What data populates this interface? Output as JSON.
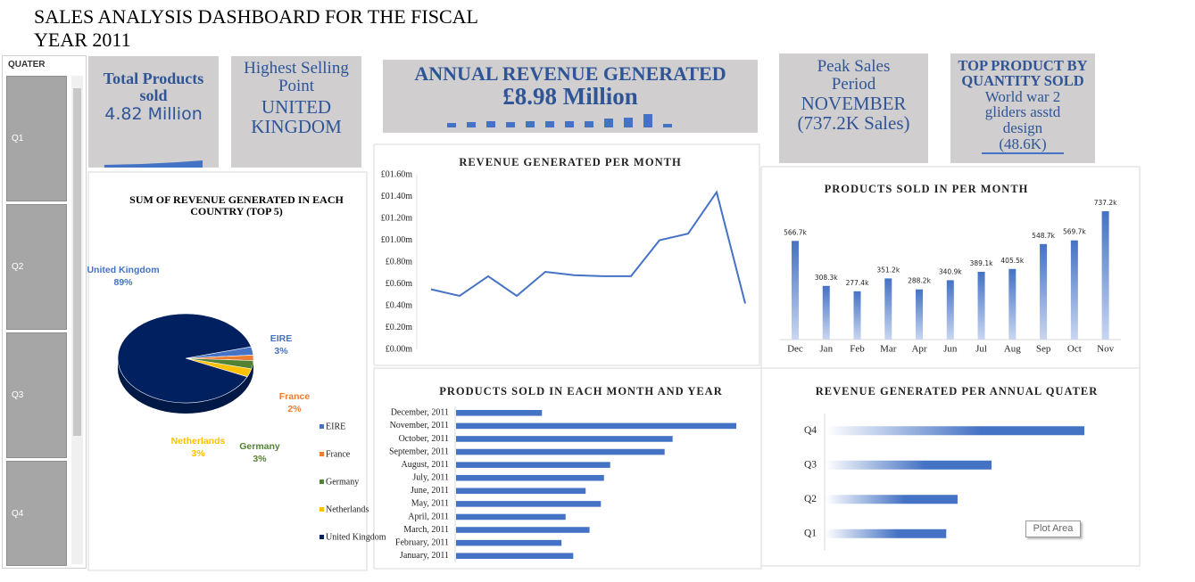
{
  "title": "SALES ANALYSIS DASHBOARD FOR THE FISCAL YEAR 2011",
  "slicer": {
    "title": "QUATER",
    "items": [
      "Q1",
      "Q2",
      "Q3",
      "Q4"
    ]
  },
  "cards": [
    {
      "label": "Total Products sold",
      "value": "4.82 Million"
    },
    {
      "label": "Highest Selling Point",
      "value": "UNITED KINGDOM"
    },
    {
      "label": "ANNUAL REVENUE GENERATED",
      "value": "£8.98 Million"
    },
    {
      "label": "Peak Sales Period",
      "value": "NOVEMBER",
      "detail": "(737.2K Sales)"
    },
    {
      "label": "TOP PRODUCT BY QUANTITY SOLD",
      "value": "World war 2 gliders asstd design",
      "detail": "(48.6K)"
    }
  ],
  "tooltip": "Plot Area",
  "chart_data": [
    {
      "type": "pie",
      "title": "SUM OF REVENUE GENERATED IN EACH COUNTRY (TOP 5)",
      "categories": [
        "EIRE",
        "France",
        "Germany",
        "Netherlands",
        "United Kingdom"
      ],
      "values": [
        3,
        2,
        3,
        3,
        89
      ],
      "value_labels": [
        "3%",
        "2%",
        "3%",
        "3%",
        "89%"
      ],
      "colors": [
        "#4472c4",
        "#ed7d31",
        "#548235",
        "#ffc000",
        "#002060"
      ],
      "legend": "right"
    },
    {
      "type": "line",
      "title": "REVENUE GENERATED PER MONTH",
      "categories": [
        null,
        null,
        null,
        null,
        null,
        null,
        null,
        null,
        null,
        null,
        null,
        null
      ],
      "values": [
        0.55,
        0.49,
        0.67,
        0.49,
        0.71,
        0.68,
        0.67,
        0.67,
        1.0,
        1.06,
        1.44,
        0.42
      ],
      "color": "#4472c4",
      "ylim": [
        0,
        1.6
      ],
      "yticks": [
        {
          "value": 0,
          "label": "£0.00m"
        },
        {
          "value": 0.2,
          "label": "£0.20m"
        },
        {
          "value": 0.4,
          "label": "£0.40m"
        },
        {
          "value": 0.6,
          "label": "£0.60m"
        },
        {
          "value": 0.8,
          "label": "£0.80m"
        },
        {
          "value": 1.0,
          "label": "£01.00m"
        },
        {
          "value": 1.2,
          "label": "£01.20m"
        },
        {
          "value": 1.4,
          "label": "£01.40m"
        },
        {
          "value": 1.6,
          "label": "£01.60m"
        }
      ],
      "grid": false
    },
    {
      "type": "bar",
      "title": "PRODUCTS SOLD IN PER MONTH",
      "categories": [
        "Dec",
        "Jan",
        "Feb",
        "Mar",
        "Apr",
        "Jun",
        "Jul",
        "Aug",
        "Sep",
        "Oct",
        "Nov"
      ],
      "values": [
        566.7,
        308.3,
        277.4,
        351.2,
        288.2,
        340.9,
        389.1,
        405.5,
        548.7,
        569.7,
        737.2
      ],
      "value_labels": [
        "566.7k",
        "308.3k",
        "277.4k",
        "351.2k",
        "288.2k",
        "340.9k",
        "389.1k",
        "405.5k",
        "548.7k",
        "569.7k",
        "737.2k"
      ],
      "color": "#4472c4"
    },
    {
      "type": "barh",
      "title": "PRODUCTS SOLD IN EACH MONTH AND YEAR",
      "categories": [
        "December, 2011",
        "November, 2011",
        "October, 2011",
        "September, 2011",
        "August, 2011",
        "July, 2011",
        "June, 2011",
        "May, 2011",
        "April, 2011",
        "March, 2011",
        "February, 2011",
        "January, 2011"
      ],
      "values": [
        226,
        737.2,
        569.7,
        548.7,
        405.5,
        389.1,
        340.9,
        381,
        288.2,
        351.2,
        277.4,
        308.3
      ],
      "color": "#4472c4"
    },
    {
      "type": "barh",
      "title": "REVENUE GENERATED PER ANNUAL QUATER",
      "categories": [
        "Q4",
        "Q3",
        "Q2",
        "Q1"
      ],
      "values": [
        3.43,
        2.2,
        1.75,
        1.6
      ],
      "color": "#4472c4",
      "gradient": true
    }
  ]
}
